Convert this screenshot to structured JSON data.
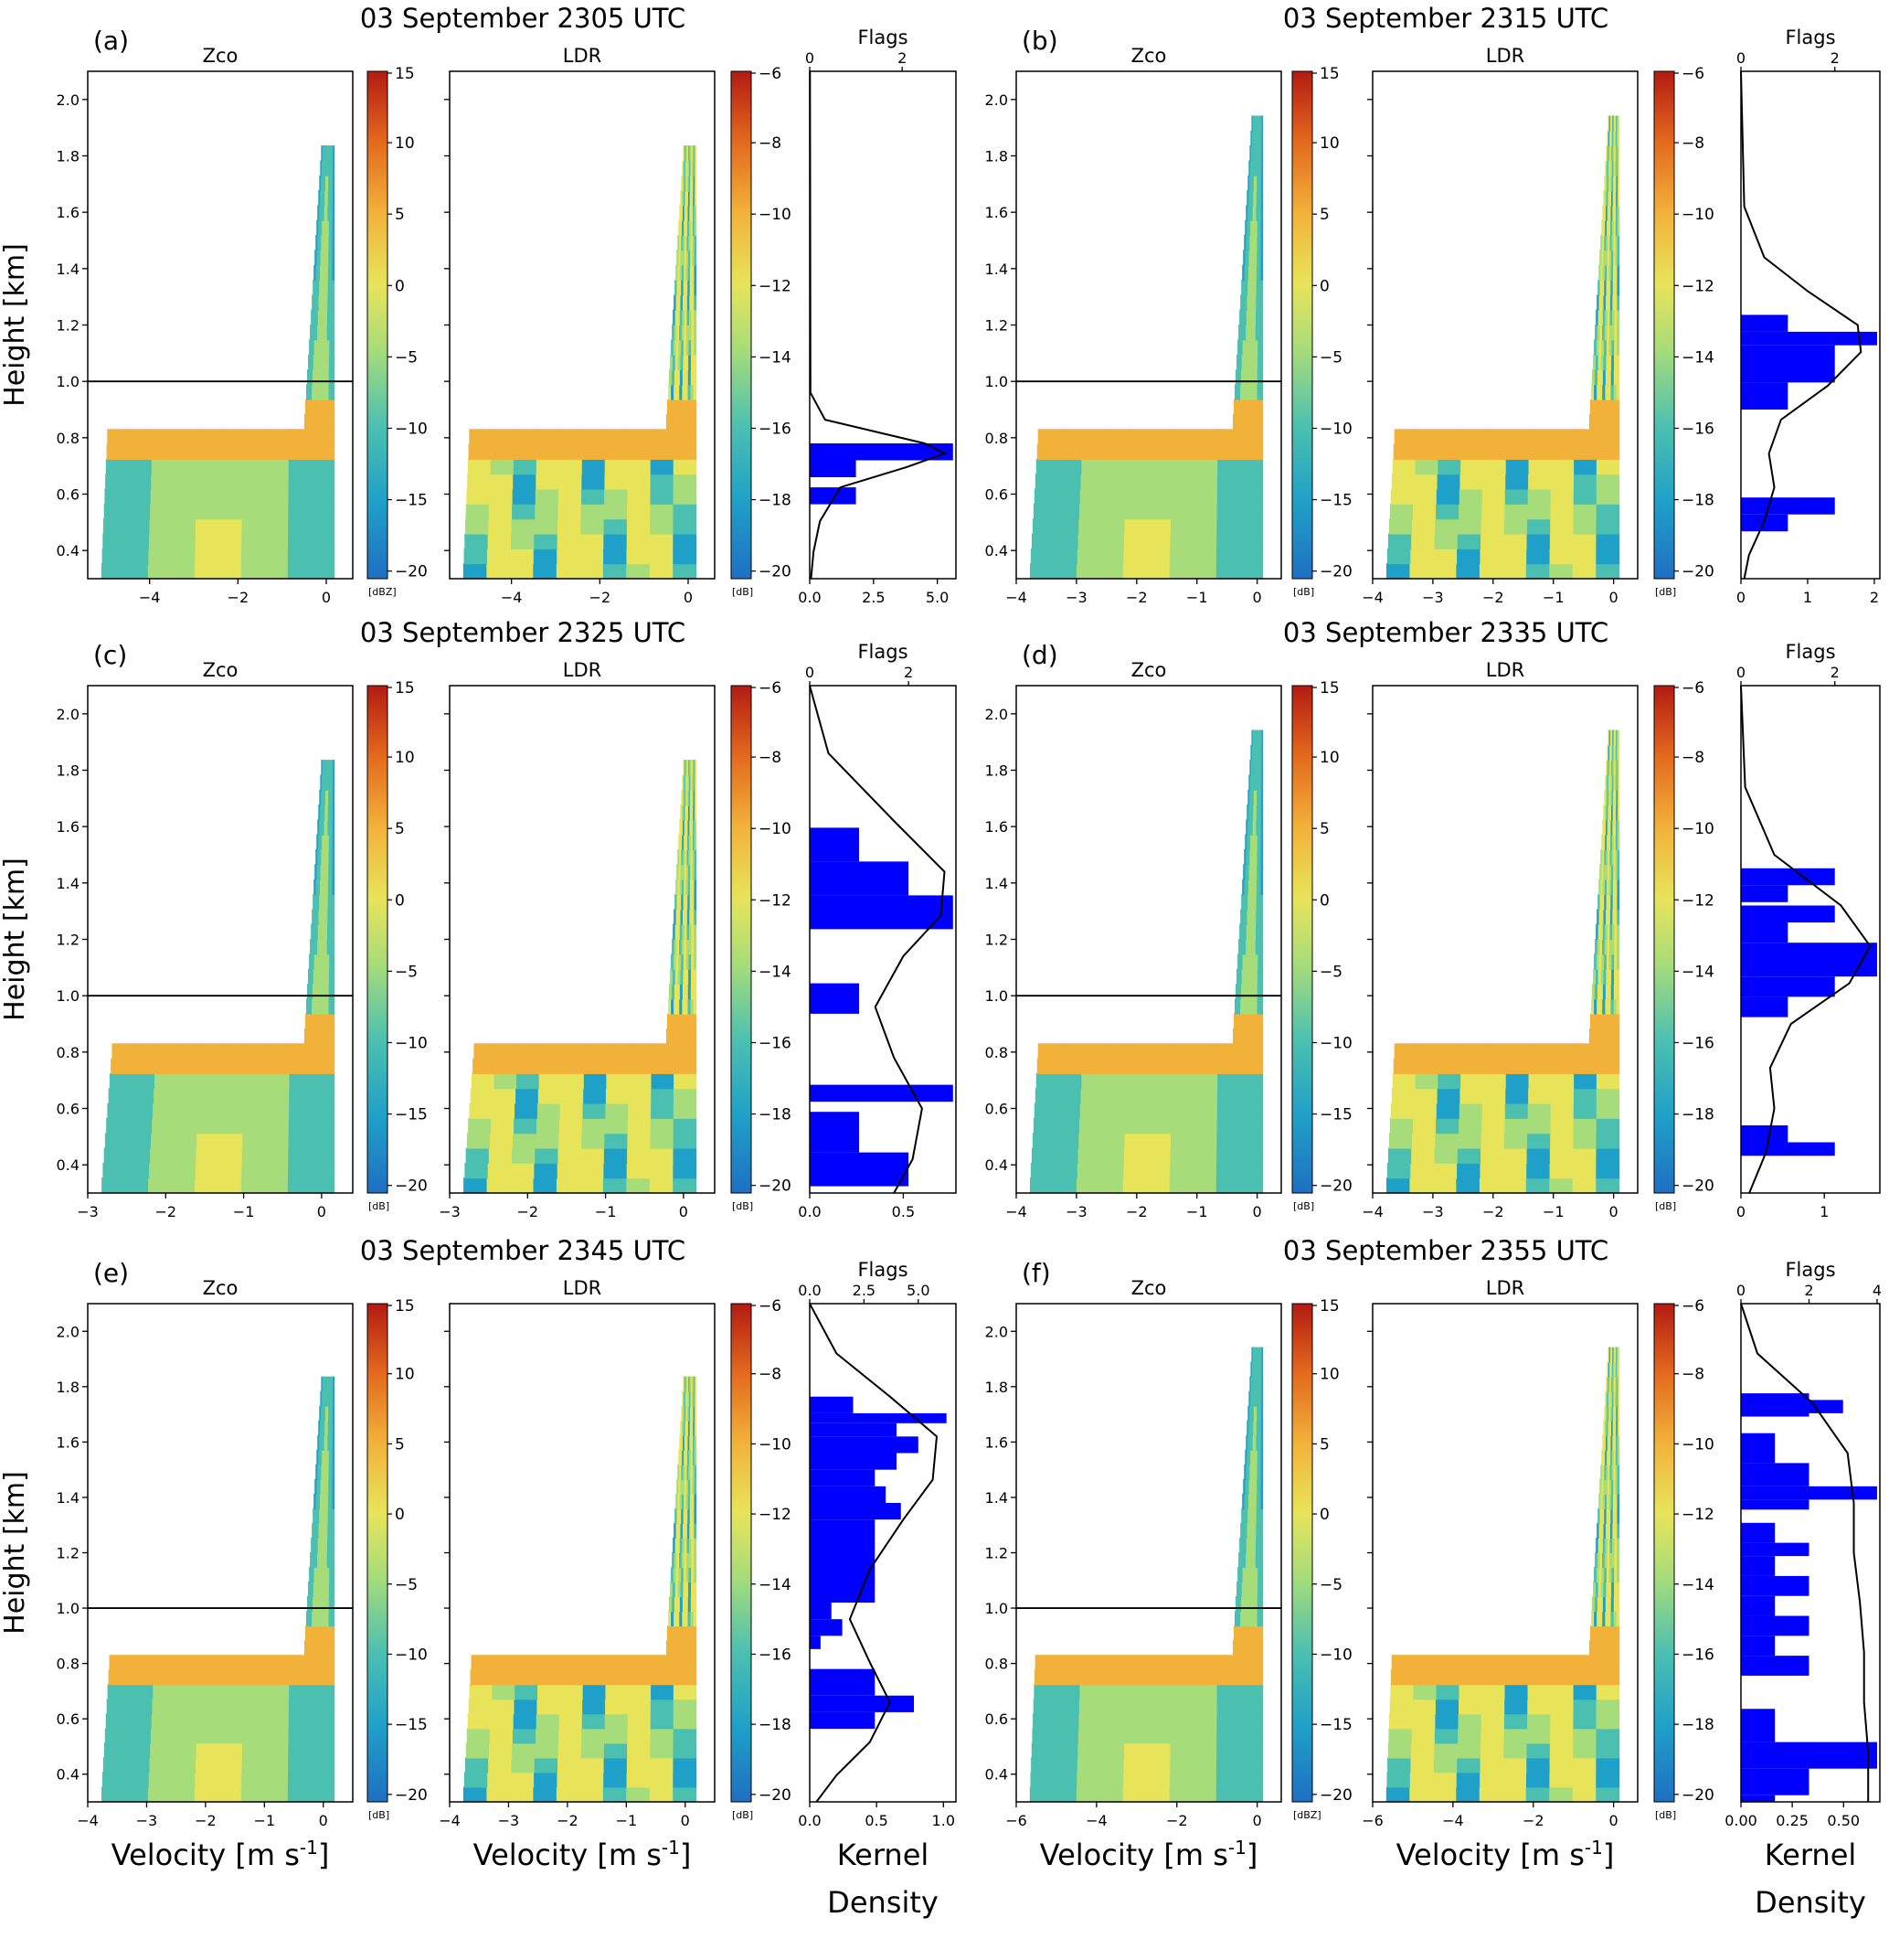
{
  "colors": {
    "cmap": [
      "#1f6fc2",
      "#1fa0c8",
      "#4cc0b0",
      "#a6dc7a",
      "#e8e45a",
      "#f2b23a",
      "#e36a1e",
      "#b31b12"
    ],
    "hist_bar": "#0000ff",
    "contour": "#000000",
    "contour_grey": "#888888",
    "zco_top_line": "#1f6fc2",
    "ldr_top_line": "#c0140e"
  },
  "common": {
    "ylabel": "Height [km]",
    "xlabel_velocity": "Velocity [m s-1]",
    "xlabel_density": "Kernel Density",
    "zco_title": "Zco",
    "ldr_title": "LDR",
    "flags_title": "Flags",
    "ldr_unit": "[dB]",
    "ldr_colorbar_ticks": [
      "-6",
      "-8",
      "-10",
      "-12",
      "-14",
      "-16",
      "-18",
      "-20"
    ],
    "zco_colorbar_ticks": [
      "15",
      "10",
      "5",
      "0",
      "-5",
      "-10",
      "-15",
      "-20"
    ],
    "reference_height_km": 1.0
  },
  "chart_data": [
    {
      "type": "heatmap",
      "panel": "(a)",
      "title": "03 September 2305 UTC",
      "ylim": [
        0.3,
        2.1
      ],
      "yticks": [
        "0.4",
        "0.6",
        "0.8",
        "1.0",
        "1.2",
        "1.4",
        "1.6",
        "1.8",
        "2.0"
      ],
      "xlim": [
        -5.4,
        0.6
      ],
      "xticks": [
        "-4",
        "-2",
        "0"
      ],
      "zco_unit": "[dBZ]",
      "flags_ticks": [
        "0",
        "2"
      ],
      "flags_max": 3.1,
      "density_ticks": [
        "0.0",
        "2.5",
        "5.0"
      ],
      "density_max": 5.5,
      "density_curve": [
        [
          -5,
          0.01
        ],
        [
          -14.5,
          0.03
        ],
        [
          -15.3,
          0.6
        ],
        [
          -16,
          4.5
        ],
        [
          -16.3,
          5.3
        ],
        [
          -16.7,
          3.8
        ],
        [
          -17.3,
          1.2
        ],
        [
          -18.3,
          0.4
        ],
        [
          -19.2,
          0.15
        ],
        [
          -20,
          0.05
        ]
      ],
      "hist": [
        [
          -16,
          -16.5,
          3.1
        ],
        [
          -16.5,
          -17,
          1.0
        ],
        [
          -17.3,
          -17.8,
          1.0
        ]
      ]
    },
    {
      "type": "heatmap",
      "panel": "(b)",
      "title": "03 September 2315 UTC",
      "ylim": [
        0.3,
        2.1
      ],
      "yticks": [
        "0.4",
        "0.6",
        "0.8",
        "1.0",
        "1.2",
        "1.4",
        "1.6",
        "1.8",
        "2.0"
      ],
      "xlim": [
        -4,
        0.4
      ],
      "xticks": [
        "-4",
        "-3",
        "-2",
        "-1",
        "0"
      ],
      "zco_unit": "[dB]",
      "flags_ticks": [
        "0",
        "2"
      ],
      "flags_max": 2.9,
      "density_ticks": [
        "0",
        "1",
        "2"
      ],
      "density_max": 2.0,
      "density_curve": [
        [
          -5,
          0.0
        ],
        [
          -9,
          0.05
        ],
        [
          -10.5,
          0.35
        ],
        [
          -11.5,
          1.0
        ],
        [
          -12.5,
          1.75
        ],
        [
          -13.3,
          1.8
        ],
        [
          -14.3,
          1.3
        ],
        [
          -15.3,
          0.6
        ],
        [
          -16.3,
          0.42
        ],
        [
          -17.3,
          0.5
        ],
        [
          -18.3,
          0.35
        ],
        [
          -19.3,
          0.12
        ],
        [
          -20,
          0.05
        ]
      ],
      "hist": [
        [
          -12.2,
          -12.7,
          1.0
        ],
        [
          -12.7,
          -13.1,
          2.9
        ],
        [
          -13.1,
          -14.2,
          2.0
        ],
        [
          -14.2,
          -15,
          1.0
        ],
        [
          -17.6,
          -18.1,
          2.0
        ],
        [
          -18.1,
          -18.6,
          1.0
        ]
      ]
    },
    {
      "type": "heatmap",
      "panel": "(c)",
      "title": "03 September 2325 UTC",
      "ylim": [
        0.3,
        2.1
      ],
      "yticks": [
        "0.4",
        "0.6",
        "0.8",
        "1.0",
        "1.2",
        "1.4",
        "1.6",
        "1.8",
        "2.0"
      ],
      "xlim": [
        -3,
        0.4
      ],
      "xticks": [
        "-3",
        "-2",
        "-1",
        "0"
      ],
      "zco_unit": "[dB]",
      "flags_ticks": [
        "0",
        "2"
      ],
      "flags_max": 2.9,
      "density_ticks": [
        "0.0",
        "0.5"
      ],
      "density_max": 0.75,
      "density_curve": [
        [
          -5,
          0.0
        ],
        [
          -7,
          0.1
        ],
        [
          -9,
          0.45
        ],
        [
          -10.5,
          0.72
        ],
        [
          -11.8,
          0.7
        ],
        [
          -13,
          0.5
        ],
        [
          -14.5,
          0.35
        ],
        [
          -16,
          0.45
        ],
        [
          -17.5,
          0.6
        ],
        [
          -19,
          0.55
        ],
        [
          -20,
          0.45
        ]
      ],
      "hist": [
        [
          -9.2,
          -10.2,
          1.0
        ],
        [
          -10.2,
          -11.2,
          2.0
        ],
        [
          -11.2,
          -12.2,
          2.9
        ],
        [
          -13.8,
          -14.7,
          1.0
        ],
        [
          -16.8,
          -17.3,
          2.9
        ],
        [
          -17.6,
          -18.8,
          1.0
        ],
        [
          -18.8,
          -19.8,
          2.0
        ]
      ]
    },
    {
      "type": "heatmap",
      "panel": "(d)",
      "title": "03 September 2335 UTC",
      "ylim": [
        0.3,
        2.1
      ],
      "yticks": [
        "0.4",
        "0.6",
        "0.8",
        "1.0",
        "1.2",
        "1.4",
        "1.6",
        "1.8",
        "2.0"
      ],
      "xlim": [
        -4,
        0.4
      ],
      "xticks": [
        "-4",
        "-3",
        "-2",
        "-1",
        "0"
      ],
      "zco_unit": "[dB]",
      "flags_ticks": [
        "0",
        "2"
      ],
      "flags_max": 2.9,
      "density_ticks": [
        "0",
        "1"
      ],
      "density_max": 1.6,
      "density_curve": [
        [
          -5,
          0.0
        ],
        [
          -8,
          0.05
        ],
        [
          -10,
          0.4
        ],
        [
          -11.5,
          1.2
        ],
        [
          -12.7,
          1.55
        ],
        [
          -13.8,
          1.3
        ],
        [
          -15,
          0.6
        ],
        [
          -16.3,
          0.35
        ],
        [
          -17.5,
          0.4
        ],
        [
          -18.8,
          0.3
        ],
        [
          -20,
          0.1
        ]
      ],
      "hist": [
        [
          -10.4,
          -10.9,
          2.0
        ],
        [
          -10.9,
          -11.4,
          1.0
        ],
        [
          -11.5,
          -12,
          2.0
        ],
        [
          -12,
          -12.6,
          1.0
        ],
        [
          -12.6,
          -13.6,
          2.9
        ],
        [
          -13.6,
          -14.2,
          2.0
        ],
        [
          -14.2,
          -14.8,
          1.0
        ],
        [
          -18,
          -18.5,
          1.0
        ],
        [
          -18.5,
          -18.9,
          2.0
        ]
      ]
    },
    {
      "type": "heatmap",
      "panel": "(e)",
      "title": "03 September 2345 UTC",
      "ylim": [
        0.3,
        2.1
      ],
      "yticks": [
        "0.4",
        "0.6",
        "0.8",
        "1.0",
        "1.2",
        "1.4",
        "1.6",
        "1.8",
        "2.0"
      ],
      "xlim": [
        -4,
        0.5
      ],
      "xticks": [
        "-4",
        "-3",
        "-2",
        "-1",
        "0"
      ],
      "zco_unit": "[dB]",
      "flags_ticks": [
        "0.0",
        "2.5",
        "5.0"
      ],
      "flags_max": 6.6,
      "density_ticks": [
        "0.0",
        "0.5",
        "1.0"
      ],
      "density_max": 1.05,
      "density_curve": [
        [
          -5,
          0.0
        ],
        [
          -6.5,
          0.2
        ],
        [
          -7.8,
          0.6
        ],
        [
          -9,
          0.95
        ],
        [
          -10.3,
          0.92
        ],
        [
          -11.5,
          0.7
        ],
        [
          -13,
          0.45
        ],
        [
          -14.5,
          0.3
        ],
        [
          -15.8,
          0.45
        ],
        [
          -17,
          0.6
        ],
        [
          -18.2,
          0.45
        ],
        [
          -19.2,
          0.2
        ],
        [
          -20,
          0.05
        ]
      ],
      "hist": [
        [
          -7.8,
          -8.3,
          2.0
        ],
        [
          -8.3,
          -8.6,
          6.3
        ],
        [
          -8.6,
          -9,
          4.0
        ],
        [
          -9,
          -9.5,
          5.0
        ],
        [
          -9.5,
          -10,
          4.0
        ],
        [
          -10,
          -10.5,
          3.0
        ],
        [
          -10.5,
          -11,
          3.5
        ],
        [
          -11,
          -11.5,
          4.2
        ],
        [
          -11.5,
          -14,
          3.0
        ],
        [
          -12.5,
          -13.3,
          2.4
        ],
        [
          -13.3,
          -14,
          1.7
        ],
        [
          -14,
          -14.5,
          1.0
        ],
        [
          -14.5,
          -15,
          1.5
        ],
        [
          -15,
          -15.4,
          0.5
        ],
        [
          -16,
          -16.8,
          3.0
        ],
        [
          -16.8,
          -17.3,
          4.8
        ],
        [
          -17.3,
          -17.8,
          3.0
        ]
      ]
    },
    {
      "type": "heatmap",
      "panel": "(f)",
      "title": "03 September 2355 UTC",
      "ylim": [
        0.3,
        2.1
      ],
      "yticks": [
        "0.4",
        "0.6",
        "0.8",
        "1.0",
        "1.2",
        "1.4",
        "1.6",
        "1.8",
        "2.0"
      ],
      "xlim": [
        -6,
        0.6
      ],
      "xticks": [
        "-6",
        "-4",
        "-2",
        "0"
      ],
      "zco_unit": "[dBZ]",
      "flags_ticks": [
        "0",
        "2",
        "4"
      ],
      "flags_max": 4.0,
      "density_ticks": [
        "0.00",
        "0.25",
        "0.50"
      ],
      "density_max": 0.65,
      "density_curve": [
        [
          -5,
          0.0
        ],
        [
          -6.5,
          0.08
        ],
        [
          -8,
          0.35
        ],
        [
          -9.5,
          0.52
        ],
        [
          -11,
          0.55
        ],
        [
          -12.5,
          0.55
        ],
        [
          -14,
          0.58
        ],
        [
          -15.5,
          0.6
        ],
        [
          -17,
          0.6
        ],
        [
          -18.5,
          0.62
        ],
        [
          -20,
          0.62
        ]
      ],
      "hist": [
        [
          -7.7,
          -8.4,
          2.0
        ],
        [
          -7.9,
          -8.3,
          3.0
        ],
        [
          -8.9,
          -9.8,
          1.0
        ],
        [
          -9.8,
          -10.5,
          2.0
        ],
        [
          -10.5,
          -10.9,
          4.0
        ],
        [
          -10.9,
          -11.2,
          2.0
        ],
        [
          -11.6,
          -12.2,
          1.0
        ],
        [
          -12.2,
          -12.6,
          2.0
        ],
        [
          -12.6,
          -13.2,
          1.0
        ],
        [
          -13.2,
          -13.8,
          2.0
        ],
        [
          -13.8,
          -14.4,
          1.0
        ],
        [
          -14.4,
          -15,
          2.0
        ],
        [
          -15,
          -15.6,
          1.0
        ],
        [
          -15.6,
          -16.2,
          2.0
        ],
        [
          -17.2,
          -18.2,
          1.0
        ],
        [
          -18.2,
          -19,
          4.0
        ],
        [
          -19,
          -19.8,
          2.0
        ],
        [
          -19.8,
          -20,
          1.0
        ]
      ]
    }
  ]
}
